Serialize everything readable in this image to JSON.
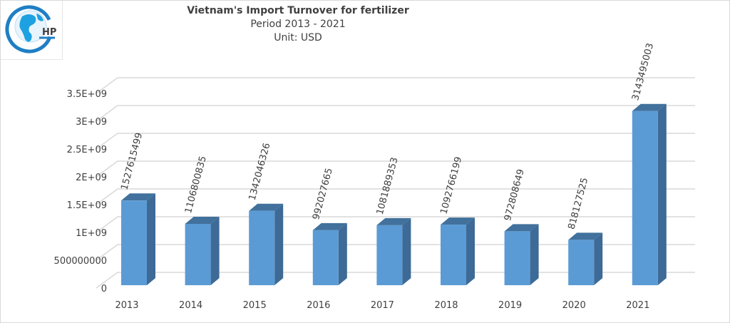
{
  "chart_data": {
    "type": "bar",
    "style": "3d-column",
    "title": "Vietnam's Import Turnover for fertilizer",
    "subtitle": "Period 2013 - 2021",
    "unit_label": "Unit: USD",
    "categories": [
      "2013",
      "2014",
      "2015",
      "2016",
      "2017",
      "2018",
      "2019",
      "2020",
      "2021"
    ],
    "values": [
      1527615499,
      1106800835,
      1342046326,
      992027665,
      1081889353,
      1092766199,
      972808649,
      818127525,
      3143495003
    ],
    "data_labels": [
      "1527615499",
      "1106800835",
      "1342046326",
      "992027665",
      "1081889353",
      "1092766199",
      "972808649",
      "818127525",
      "3143495003"
    ],
    "y_ticks": [
      0,
      500000000,
      1000000000,
      1500000000,
      2000000000,
      2500000000,
      3000000000,
      3500000000
    ],
    "y_tick_labels": [
      "0",
      "500000000",
      "1E+09",
      "1.5E+09",
      "2E+09",
      "2.5E+09",
      "3E+09",
      "3.5E+09"
    ],
    "ylim": [
      0,
      3500000000
    ],
    "grid": true,
    "legend": "none",
    "colors": {
      "bar_front": "#5b9bd5",
      "bar_side": "#3d6a96",
      "bar_top": "#41719c",
      "grid": "#d9d9d9"
    }
  },
  "logo": {
    "text": "HP",
    "name": "hp-globe-logo"
  }
}
